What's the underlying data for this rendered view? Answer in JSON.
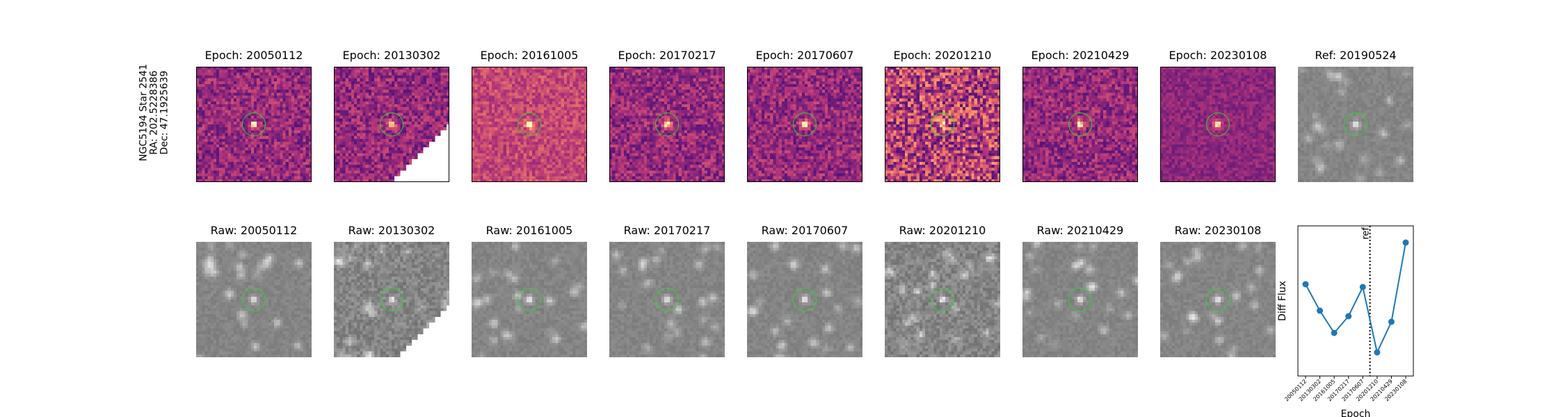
{
  "star_label": {
    "line1": "NGC5194 Star 2541",
    "line2": "RA: 202.5228386",
    "line3": "Dec: 47.1925639"
  },
  "diff_titles": [
    "Epoch: 20050112",
    "Epoch: 20130302",
    "Epoch: 20161005",
    "Epoch: 20170217",
    "Epoch: 20170607",
    "Epoch: 20201210",
    "Epoch: 20210429",
    "Epoch: 20230108"
  ],
  "ref_title": "Ref: 20190524",
  "raw_titles": [
    "Raw: 20050112",
    "Raw: 20130302",
    "Raw: 20161005",
    "Raw: 20170217",
    "Raw: 20170607",
    "Raw: 20201210",
    "Raw: 20210429",
    "Raw: 20230108"
  ],
  "colors": {
    "series": "#1f77b4",
    "circle": "#2bd62b"
  },
  "chart_data": {
    "type": "line",
    "xlabel": "Epoch",
    "ylabel": "Diff Flux",
    "x": [
      "20050112",
      "20130302",
      "20161005",
      "20170217",
      "20170607",
      "20201210",
      "20210429",
      "20230108"
    ],
    "series": [
      {
        "values": [
          0.62,
          0.43,
          0.27,
          0.39,
          0.6,
          0.13,
          0.35,
          0.92
        ]
      }
    ],
    "ylim": [
      0,
      1
    ],
    "reference_line": {
      "label": "ref",
      "between": [
        "20170607",
        "20201210"
      ],
      "style": "dotted"
    },
    "grid": false
  }
}
